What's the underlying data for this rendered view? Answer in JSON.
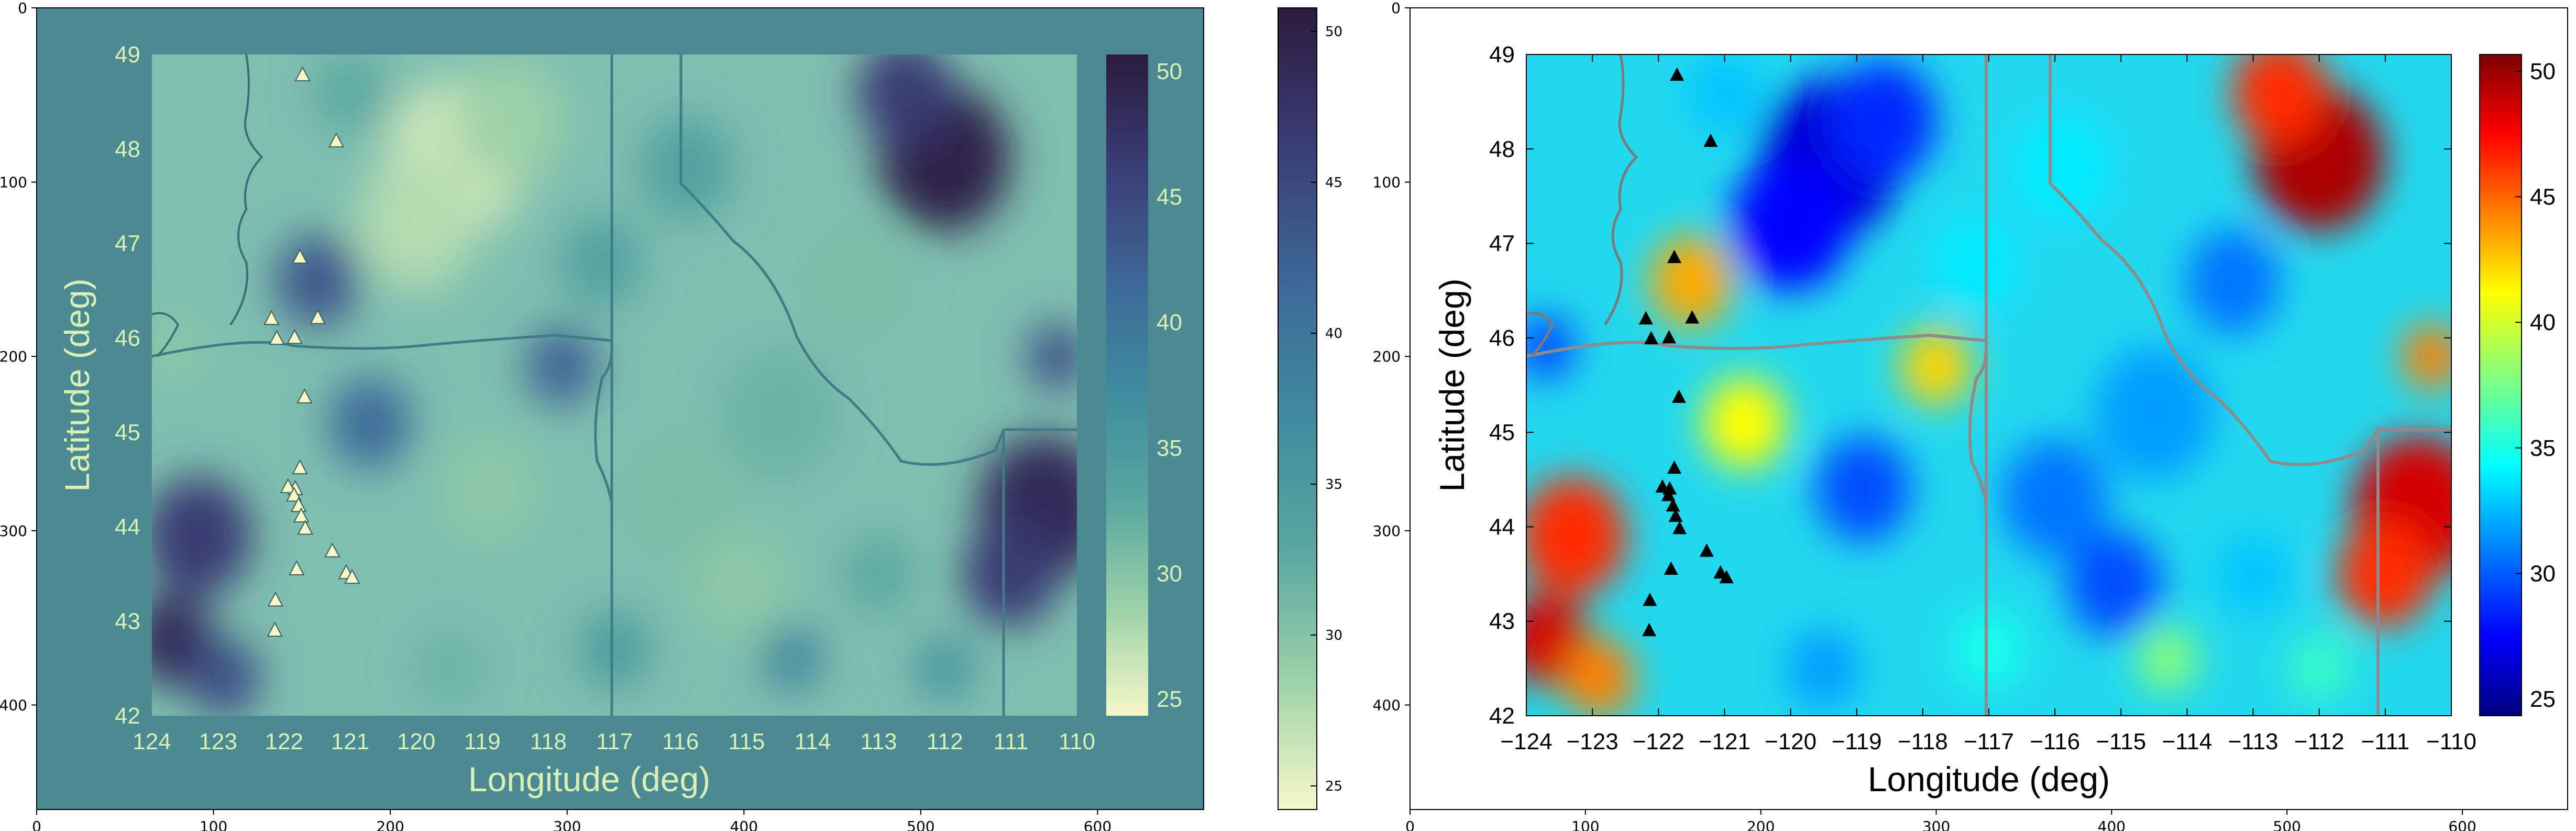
{
  "figure": {
    "left_plot": {
      "outer_x_ticks": [
        "0",
        "100",
        "200",
        "300",
        "400",
        "500",
        "600"
      ],
      "outer_y_ticks": [
        "0",
        "100",
        "200",
        "300",
        "400"
      ],
      "inner_x_ticks": [
        "124",
        "123",
        "122",
        "121",
        "120",
        "119",
        "118",
        "117",
        "116",
        "115",
        "114",
        "113",
        "112",
        "111",
        "110"
      ],
      "inner_y_ticks": [
        "49",
        "48",
        "47",
        "46",
        "45",
        "44",
        "43",
        "42"
      ],
      "inner_x_label": "Longitude (deg)",
      "inner_y_label": "Latitude (deg)",
      "inner_cb_ticks": [
        "50",
        "45",
        "40",
        "35",
        "30",
        "25"
      ],
      "side_cb_ticks": [
        "50",
        "45",
        "40",
        "35",
        "30",
        "25"
      ],
      "colors": {
        "background": "#4b8a92",
        "text": "#d9f0b4"
      }
    },
    "right_plot": {
      "outer_x_ticks": [
        "0",
        "100",
        "200",
        "300",
        "400",
        "500",
        "600"
      ],
      "outer_y_ticks": [
        "0",
        "100",
        "200",
        "300",
        "400"
      ],
      "inner_x_ticks": [
        "−124",
        "−123",
        "−122",
        "−121",
        "−120",
        "−119",
        "−118",
        "−117",
        "−116",
        "−115",
        "−114",
        "−113",
        "−112",
        "−111",
        "−110"
      ],
      "inner_y_ticks": [
        "49",
        "48",
        "47",
        "46",
        "45",
        "44",
        "43",
        "42"
      ],
      "inner_x_label": "Longitude (deg)",
      "inner_y_label": "Latitude (deg)",
      "inner_cb_ticks": [
        "50",
        "45",
        "40",
        "35",
        "30",
        "25"
      ],
      "colors": {
        "text": "#000000"
      }
    }
  },
  "chart_data": [
    {
      "type": "heatmap",
      "panel": "left",
      "colormap": "YlGnBu",
      "xlabel": "Longitude (deg)",
      "ylabel": "Latitude (deg)",
      "xlim": [
        124,
        110
      ],
      "ylim": [
        42,
        49
      ],
      "clim": [
        25,
        50
      ],
      "image_axes": {
        "xlim": [
          0,
          660
        ],
        "ylim": [
          460,
          0
        ]
      },
      "stations": [
        [
          -121.72,
          48.78
        ],
        [
          -121.21,
          48.08
        ],
        [
          -121.76,
          46.85
        ],
        [
          -122.19,
          46.2
        ],
        [
          -121.49,
          46.21
        ],
        [
          -122.11,
          45.99
        ],
        [
          -121.84,
          46.0
        ],
        [
          -121.69,
          45.37
        ],
        [
          -121.76,
          44.62
        ],
        [
          -121.83,
          44.4
        ],
        [
          -121.94,
          44.42
        ],
        [
          -121.85,
          44.33
        ],
        [
          -121.78,
          44.22
        ],
        [
          -121.74,
          44.11
        ],
        [
          -121.68,
          43.98
        ],
        [
          -121.27,
          43.74
        ],
        [
          -121.81,
          43.55
        ],
        [
          -121.06,
          43.51
        ],
        [
          -120.97,
          43.46
        ],
        [
          -122.13,
          43.22
        ],
        [
          -122.14,
          42.9
        ]
      ]
    },
    {
      "type": "heatmap",
      "panel": "right",
      "colormap": "jet",
      "xlabel": "Longitude (deg)",
      "ylabel": "Latitude (deg)",
      "xlim": [
        -124,
        -110
      ],
      "ylim": [
        42,
        49
      ],
      "clim": [
        25,
        50
      ],
      "image_axes": {
        "xlim": [
          0,
          660
        ],
        "ylim": [
          460,
          0
        ]
      },
      "stations": [
        [
          -121.72,
          48.78
        ],
        [
          -121.21,
          48.08
        ],
        [
          -121.76,
          46.85
        ],
        [
          -122.19,
          46.2
        ],
        [
          -121.49,
          46.21
        ],
        [
          -122.11,
          45.99
        ],
        [
          -121.84,
          46.0
        ],
        [
          -121.69,
          45.37
        ],
        [
          -121.76,
          44.62
        ],
        [
          -121.83,
          44.4
        ],
        [
          -121.94,
          44.42
        ],
        [
          -121.85,
          44.33
        ],
        [
          -121.78,
          44.22
        ],
        [
          -121.74,
          44.11
        ],
        [
          -121.68,
          43.98
        ],
        [
          -121.27,
          43.74
        ],
        [
          -121.81,
          43.55
        ],
        [
          -121.06,
          43.51
        ],
        [
          -120.97,
          43.46
        ],
        [
          -122.13,
          43.22
        ],
        [
          -122.14,
          42.9
        ]
      ]
    }
  ]
}
